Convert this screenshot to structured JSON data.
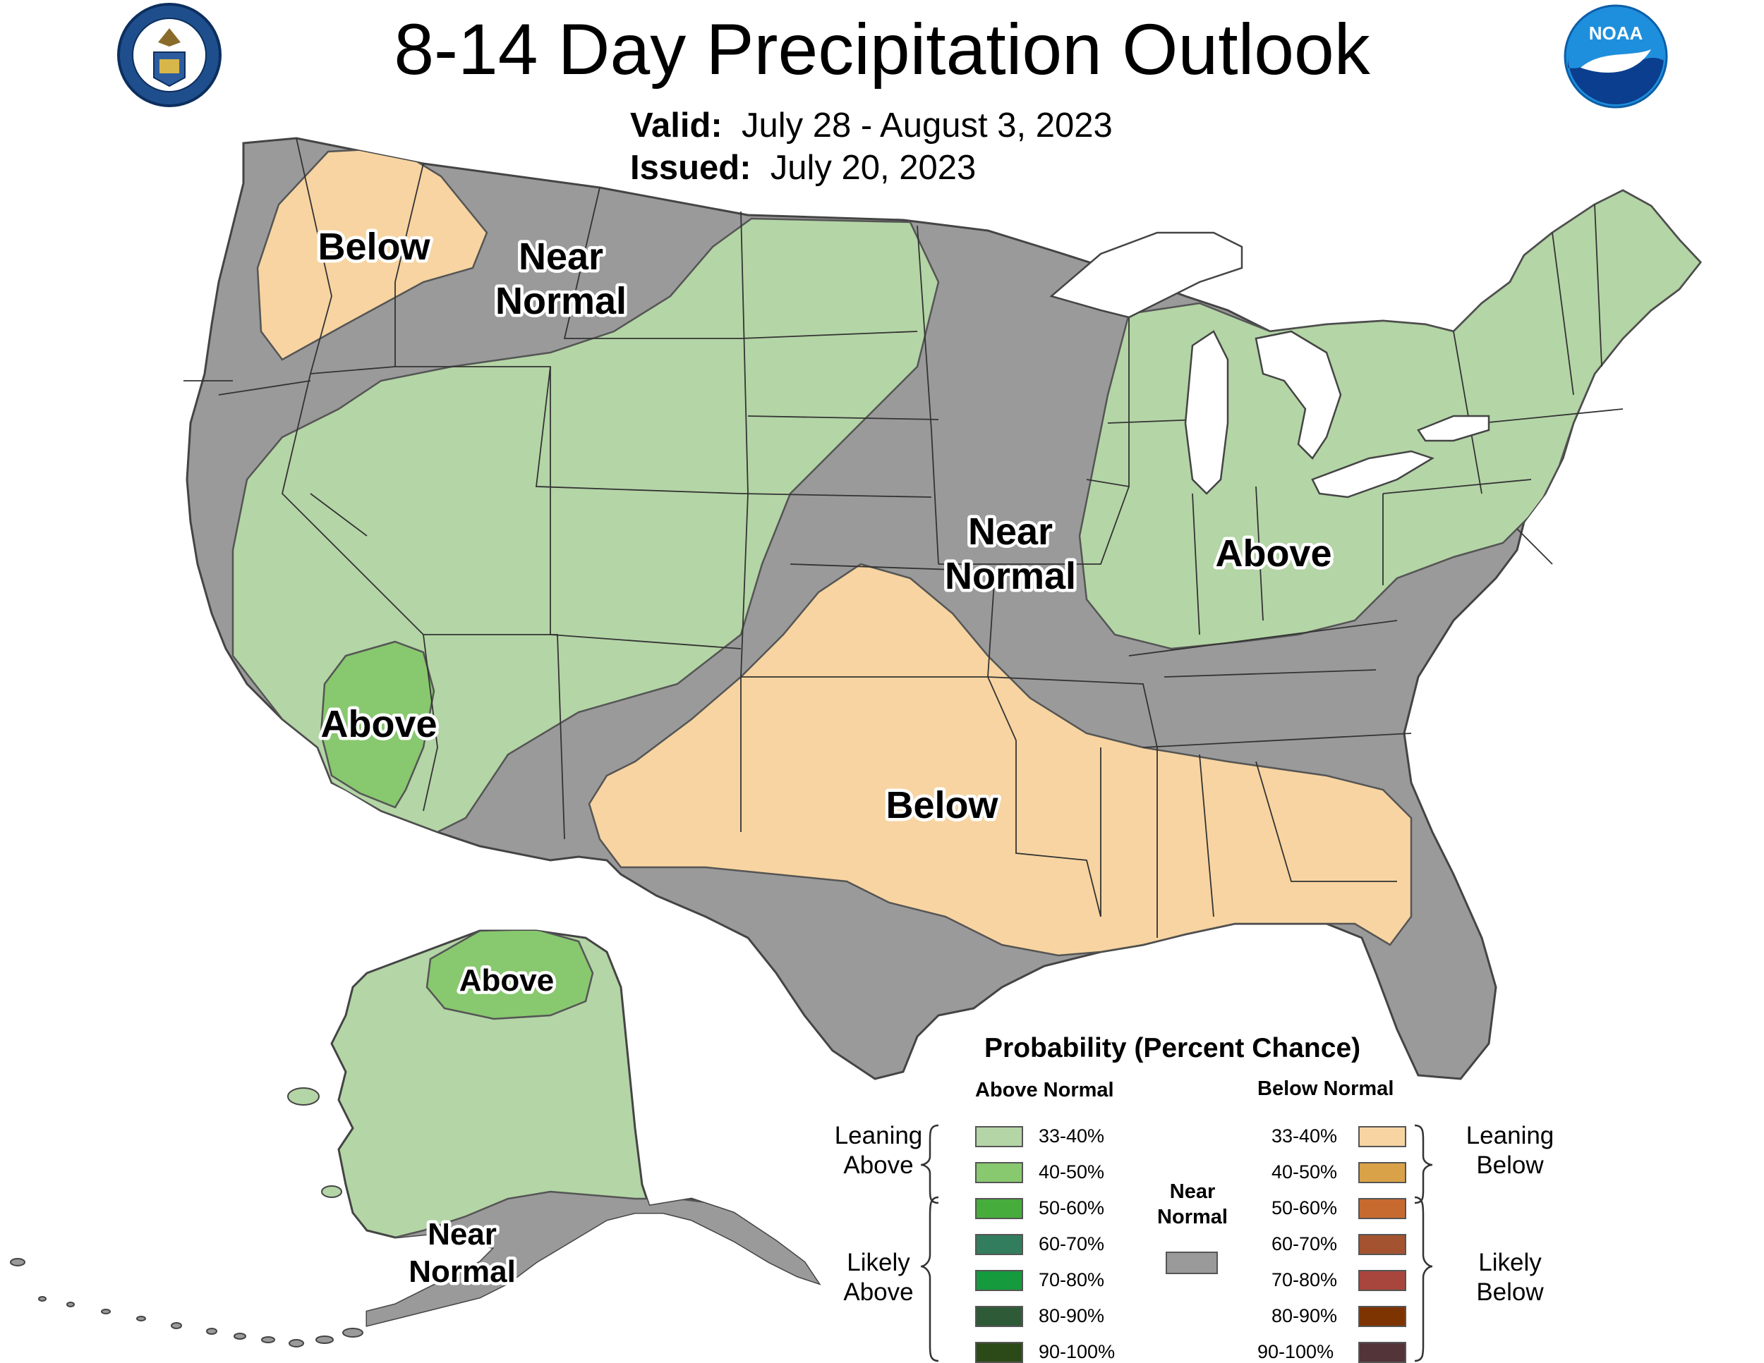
{
  "header": {
    "title": "8-14 Day Precipitation Outlook",
    "valid_label": "Valid:",
    "valid_value": "July 28 - August 3, 2023",
    "issued_label": "Issued:",
    "issued_value": "July 20, 2023"
  },
  "logos": {
    "commerce_icon": "department-of-commerce-seal",
    "noaa_text": "NOAA"
  },
  "map": {
    "region_labels": {
      "nw_below": "Below",
      "nw_near": [
        "Near",
        "Normal"
      ],
      "sw_above": "Above",
      "central_near": [
        "Near",
        "Normal"
      ],
      "east_above": "Above",
      "south_below": "Below",
      "alaska_above": "Above",
      "alaska_near": [
        "Near",
        "Normal"
      ]
    },
    "colors": {
      "near_normal": "#9a9a9a",
      "leaning_above": "#b4d5a6",
      "above_40_50": "#88c86f",
      "leaning_below": "#f7d4a1",
      "water": "#ffffff"
    }
  },
  "legend": {
    "title": "Probability (Percent Chance)",
    "above_head": "Above Normal",
    "below_head": "Below Normal",
    "near_head": [
      "Near",
      "Normal"
    ],
    "near_color": "#9a9a9a",
    "above_groups": {
      "leaning": [
        "Leaning",
        "Above"
      ],
      "likely": [
        "Likely",
        "Above"
      ]
    },
    "below_groups": {
      "leaning": [
        "Leaning",
        "Below"
      ],
      "likely": [
        "Likely",
        "Below"
      ]
    },
    "above_items": [
      {
        "label": "33-40%",
        "color": "#b4d5a6"
      },
      {
        "label": "40-50%",
        "color": "#88c86f"
      },
      {
        "label": "50-60%",
        "color": "#46ad3c"
      },
      {
        "label": "60-70%",
        "color": "#327d5e"
      },
      {
        "label": "70-80%",
        "color": "#159a3d"
      },
      {
        "label": "80-90%",
        "color": "#2f5a37"
      },
      {
        "label": "90-100%",
        "color": "#2c4a17"
      }
    ],
    "below_items": [
      {
        "label": "33-40%",
        "color": "#f7d4a1"
      },
      {
        "label": "40-50%",
        "color": "#d9a248"
      },
      {
        "label": "50-60%",
        "color": "#c76a30"
      },
      {
        "label": "60-70%",
        "color": "#a35330"
      },
      {
        "label": "70-80%",
        "color": "#a8453d"
      },
      {
        "label": "80-90%",
        "color": "#7e3400"
      },
      {
        "label": "90-100%",
        "color": "#523439"
      }
    ]
  }
}
